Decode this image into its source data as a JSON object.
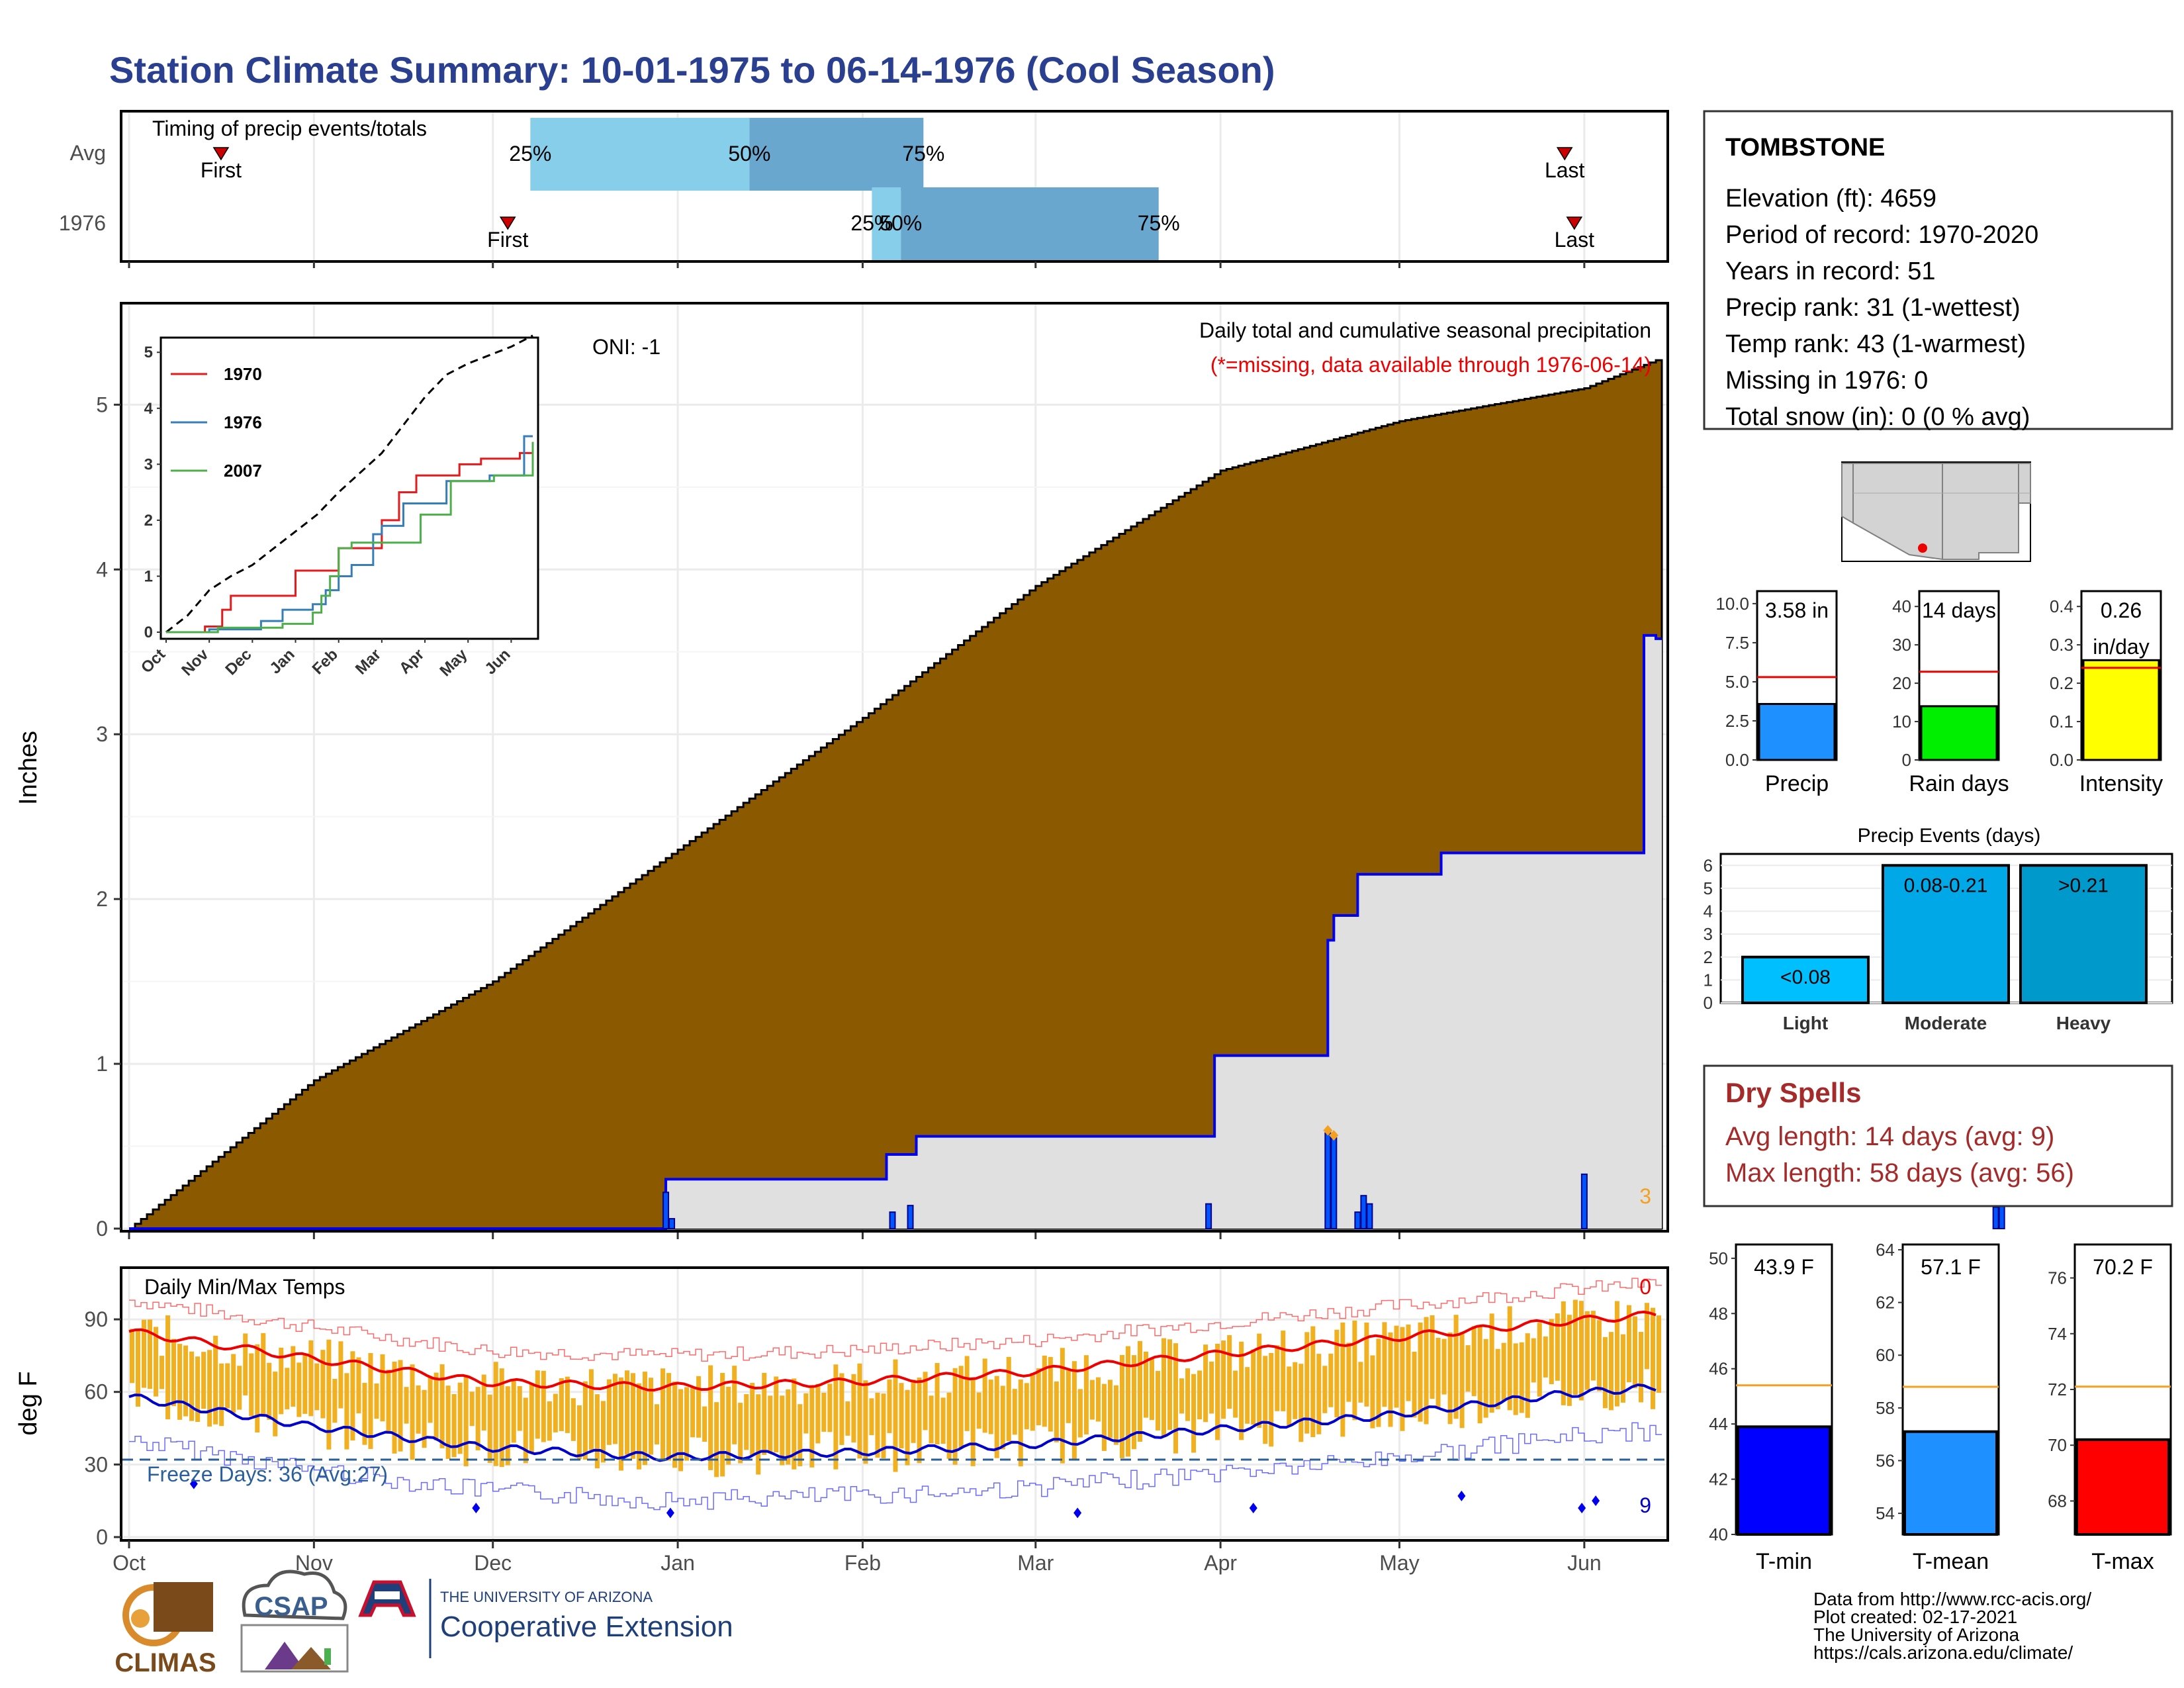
{
  "title": "Station Climate Summary: 10-01-1975 to 06-14-1976 (Cool Season)",
  "colors": {
    "title": "#2a3f8f",
    "cumulative_avg": "#8b5a00",
    "cumulative_year": "#e0e0e0",
    "year_line": "#0000ee",
    "daily_bars": "#0055ff",
    "timing_light": "#87ceeb",
    "timing_dark": "#6aa7cf",
    "temp_bars": "#f0b020",
    "tmax_line": "#ee0000",
    "tmin_line": "#0000cc",
    "dry_spells": "#a52a2a",
    "precip_bar": "#1e90ff",
    "raindays_bar": "#00ee00",
    "intensity_bar": "#ffff00",
    "light_bar": "#00bfff",
    "moderate_bar": "#00a8e8",
    "heavy_bar": "#0099cc",
    "tmin_bar": "#0000ff",
    "tmean_bar": "#1e90ff",
    "tmax_bar": "#ff0000",
    "avg_ref_line": "#f4a020"
  },
  "timing": {
    "title": "Timing of precip events/totals",
    "rows": [
      "Avg",
      "1976"
    ],
    "marker_labels": {
      "first": "First",
      "last": "Last"
    },
    "pct_labels": [
      "25%",
      "50%",
      "75%"
    ]
  },
  "station": {
    "name": "TOMBSTONE",
    "lines": [
      "Elevation (ft): 4659",
      "Period of record: 1970-2020",
      "Years in record: 51",
      "Precip rank: 31 (1-wettest)",
      "Temp rank: 43 (1-warmest)",
      "Missing in 1976: 0",
      "Total snow (in): 0 (0 % avg)"
    ]
  },
  "main_chart": {
    "ylabel": "Inches",
    "oni": "ONI: -1",
    "subtitle": "Daily total and cumulative seasonal precipitation",
    "missing_note": "(*=missing, data available through 1976-06-14)",
    "corner_count": "3",
    "yticks": [
      "0",
      "1",
      "2",
      "3",
      "4",
      "5"
    ],
    "months": [
      "Oct",
      "Nov",
      "Dec",
      "Jan",
      "Feb",
      "Mar",
      "Apr",
      "May",
      "Jun"
    ]
  },
  "inset": {
    "legend": [
      "1970",
      "1976",
      "2007"
    ],
    "yticks": [
      "0",
      "1",
      "2",
      "3",
      "4",
      "5"
    ],
    "months": [
      "Oct",
      "Nov",
      "Dec",
      "Jan",
      "Feb",
      "Mar",
      "Apr",
      "May",
      "Jun"
    ]
  },
  "temp_chart": {
    "ylabel": "deg F",
    "title": "Daily Min/Max Temps",
    "freeze": "Freeze Days: 36 (Avg:27)",
    "top_count": "0",
    "bottom_count": "9",
    "yticks": [
      "0",
      "30",
      "60",
      "90"
    ]
  },
  "summary_bars": [
    {
      "label": "Precip",
      "value_label": "3.58 in",
      "yticks": [
        "0.0",
        "2.5",
        "5.0",
        "7.5",
        "10.0"
      ]
    },
    {
      "label": "Rain days",
      "value_label": "14 days",
      "yticks": [
        "0",
        "10",
        "20",
        "30",
        "40"
      ]
    },
    {
      "label": "Intensity",
      "value_label": "0.26\nin/day",
      "yticks": [
        "0.0",
        "0.1",
        "0.2",
        "0.3",
        "0.4"
      ]
    }
  ],
  "events": {
    "title": "Precip Events (days)",
    "yticks": [
      "0",
      "1",
      "2",
      "3",
      "4",
      "5",
      "6"
    ],
    "categories": [
      "Light",
      "Moderate",
      "Heavy"
    ],
    "bar_labels": [
      "<0.08",
      "0.08-0.21",
      ">0.21"
    ]
  },
  "dry_spells": {
    "title": "Dry Spells",
    "avg": "Avg length: 14 days (avg: 9)",
    "max": "Max length: 58 days (avg: 56)"
  },
  "temp_bars": [
    {
      "label": "T-min",
      "value_label": "43.9 F",
      "yticks": [
        "40",
        "42",
        "44",
        "46",
        "48",
        "50"
      ]
    },
    {
      "label": "T-mean",
      "value_label": "57.1 F",
      "yticks": [
        "54",
        "56",
        "58",
        "60",
        "62",
        "64"
      ]
    },
    {
      "label": "T-max",
      "value_label": "70.2 F",
      "yticks": [
        "68",
        "70",
        "72",
        "74",
        "76"
      ]
    }
  ],
  "logos": {
    "climas": "CLIMAS",
    "csap": "CSAP",
    "ua_small": "THE UNIVERSITY OF ARIZONA",
    "ua_big": "Cooperative Extension"
  },
  "footer": [
    "Data from http://www.rcc-acis.org/",
    "Plot created: 02-17-2021",
    "The University of Arizona",
    "https://cals.arizona.edu/climate/"
  ],
  "chart_data": [
    {
      "type": "bar",
      "title": "Timing of precip events/totals",
      "rows": [
        "Avg",
        "1976"
      ],
      "x_axis": "days since Oct 1",
      "series": [
        {
          "name": "Avg",
          "first": 31,
          "p25": 127,
          "p50": 195,
          "p75": 249,
          "last": 448
        },
        {
          "name": "1976",
          "first": 120,
          "p25": 233,
          "p50": 242,
          "p75": 322,
          "last": 451
        }
      ]
    },
    {
      "type": "area",
      "title": "Daily total and cumulative seasonal precipitation",
      "ylabel": "Inches",
      "ylim": [
        0,
        5.6
      ],
      "x_range": [
        "1975-10-01",
        "1976-06-14"
      ],
      "series": [
        {
          "name": "Average cumulative",
          "x": [
            0,
            31,
            61,
            92,
            123,
            152,
            183,
            213,
            244,
            256
          ],
          "values": [
            0,
            0.9,
            1.5,
            2.3,
            3.1,
            3.9,
            4.6,
            4.9,
            5.1,
            5.27
          ]
        },
        {
          "name": "1976 cumulative",
          "x": [
            0,
            90,
            127,
            132,
            182,
            201,
            202,
            206,
            207,
            220,
            254,
            255,
            256
          ],
          "values": [
            0,
            0.3,
            0.45,
            0.56,
            1.05,
            1.75,
            1.9,
            2.15,
            2.15,
            2.28,
            3.6,
            3.6,
            3.58
          ]
        },
        {
          "name": "1976 daily",
          "x": [
            90,
            91,
            128,
            131,
            181,
            201,
            202,
            206,
            207,
            208,
            244,
            313,
            314,
            362
          ],
          "values": [
            0.22,
            0.06,
            0.1,
            0.14,
            0.15,
            0.58,
            0.55,
            0.1,
            0.2,
            0.15,
            0.33,
            0.13,
            0.45,
            0.8
          ]
        }
      ]
    },
    {
      "type": "line",
      "title": "Daily Min/Max Temps",
      "ylim": [
        0,
        110
      ],
      "series": [
        {
          "name": "Avg Tmax",
          "x": [
            0,
            30,
            60,
            90,
            120,
            150,
            180,
            210,
            240,
            256
          ],
          "values": [
            85,
            74,
            64,
            62,
            64,
            68,
            75,
            82,
            89,
            92
          ]
        },
        {
          "name": "Avg Tmin",
          "x": [
            0,
            30,
            60,
            90,
            120,
            150,
            180,
            210,
            240,
            256
          ],
          "values": [
            58,
            46,
            37,
            33,
            35,
            38,
            44,
            50,
            59,
            62
          ]
        },
        {
          "name": "Freeze threshold",
          "x": [
            0,
            256
          ],
          "values": [
            32,
            32
          ]
        }
      ]
    },
    {
      "type": "bar",
      "title": "Seasonal summary",
      "categories": [
        "Precip",
        "Rain days",
        "Intensity"
      ],
      "values": [
        3.58,
        14,
        0.26
      ],
      "averages": [
        5.3,
        23,
        0.24
      ]
    },
    {
      "type": "bar",
      "title": "Precip Events (days)",
      "categories": [
        "Light",
        "Moderate",
        "Heavy"
      ],
      "values": [
        2,
        6,
        6
      ],
      "ylim": [
        0,
        6.5
      ]
    },
    {
      "type": "bar",
      "title": "Temperature summary",
      "categories": [
        "T-min",
        "T-mean",
        "T-max"
      ],
      "values": [
        43.9,
        57.1,
        70.2
      ],
      "averages": [
        45.4,
        58.8,
        72.1
      ]
    }
  ]
}
